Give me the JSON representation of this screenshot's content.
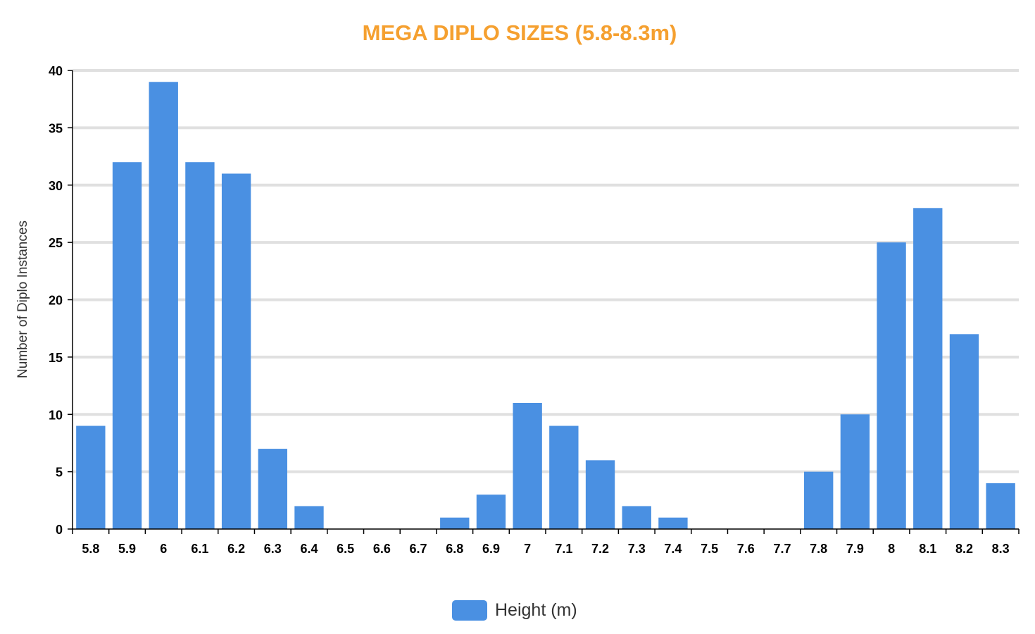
{
  "chart_data": {
    "type": "bar",
    "title": "MEGA DIPLO SIZES (5.8-8.3m)",
    "xlabel": "",
    "ylabel": "Number of Diplo Instances",
    "categories": [
      "5.8",
      "5.9",
      "6",
      "6.1",
      "6.2",
      "6.3",
      "6.4",
      "6.5",
      "6.6",
      "6.7",
      "6.8",
      "6.9",
      "7",
      "7.1",
      "7.2",
      "7.3",
      "7.4",
      "7.5",
      "7.6",
      "7.7",
      "7.8",
      "7.9",
      "8",
      "8.1",
      "8.2",
      "8.3"
    ],
    "series": [
      {
        "name": "Height (m)",
        "values": [
          9,
          32,
          39,
          32,
          31,
          7,
          2,
          0,
          0,
          0,
          1,
          3,
          11,
          9,
          6,
          2,
          1,
          0,
          0,
          0,
          5,
          10,
          25,
          28,
          17,
          4
        ]
      }
    ],
    "ylim": [
      0,
      40
    ],
    "yticks": [
      "0",
      "5",
      "10",
      "15",
      "20",
      "25",
      "30",
      "35",
      "40"
    ],
    "grid": true,
    "legend": "bottom-center"
  },
  "colors": {
    "bar": "#4a90e2",
    "title": "#f5a030",
    "grid": "#e0e0e0",
    "axis": "#000000"
  }
}
